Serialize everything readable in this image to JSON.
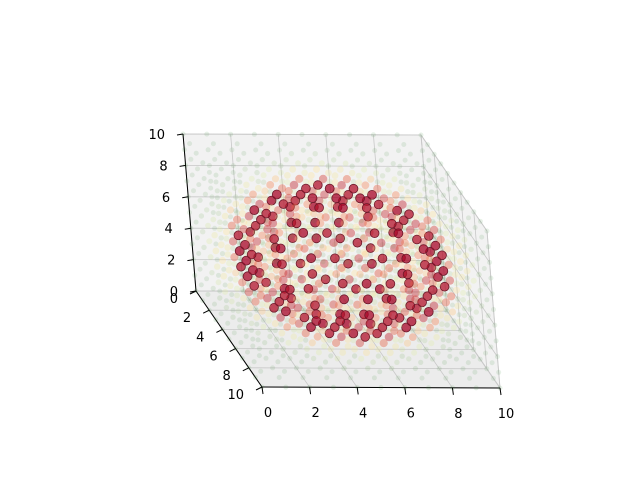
{
  "chart_data": {
    "type": "scatter",
    "projection": "3d",
    "title": "",
    "xlabel": "",
    "ylabel": "",
    "zlabel": "",
    "xlim": [
      0,
      10
    ],
    "ylim": [
      0,
      10
    ],
    "zlim": [
      0,
      10
    ],
    "grid": true,
    "legend": "none",
    "x_ticks": [
      "0",
      "2",
      "4",
      "6",
      "8",
      "10"
    ],
    "y_ticks": [
      "0",
      "2",
      "4",
      "6",
      "8",
      "10"
    ],
    "z_ticks": [
      "0",
      "2",
      "4",
      "6",
      "8",
      "10"
    ],
    "grid_points_per_axis": 11,
    "color_value": "spherical shell around center (5,5,5), peak near radius 4",
    "colormap": [
      "#3d8a3a",
      "#d9ef8b",
      "#fee08b",
      "#f46d43",
      "#a50026"
    ],
    "point_alpha": 0.35,
    "pane_color": "#f2f2f2"
  }
}
